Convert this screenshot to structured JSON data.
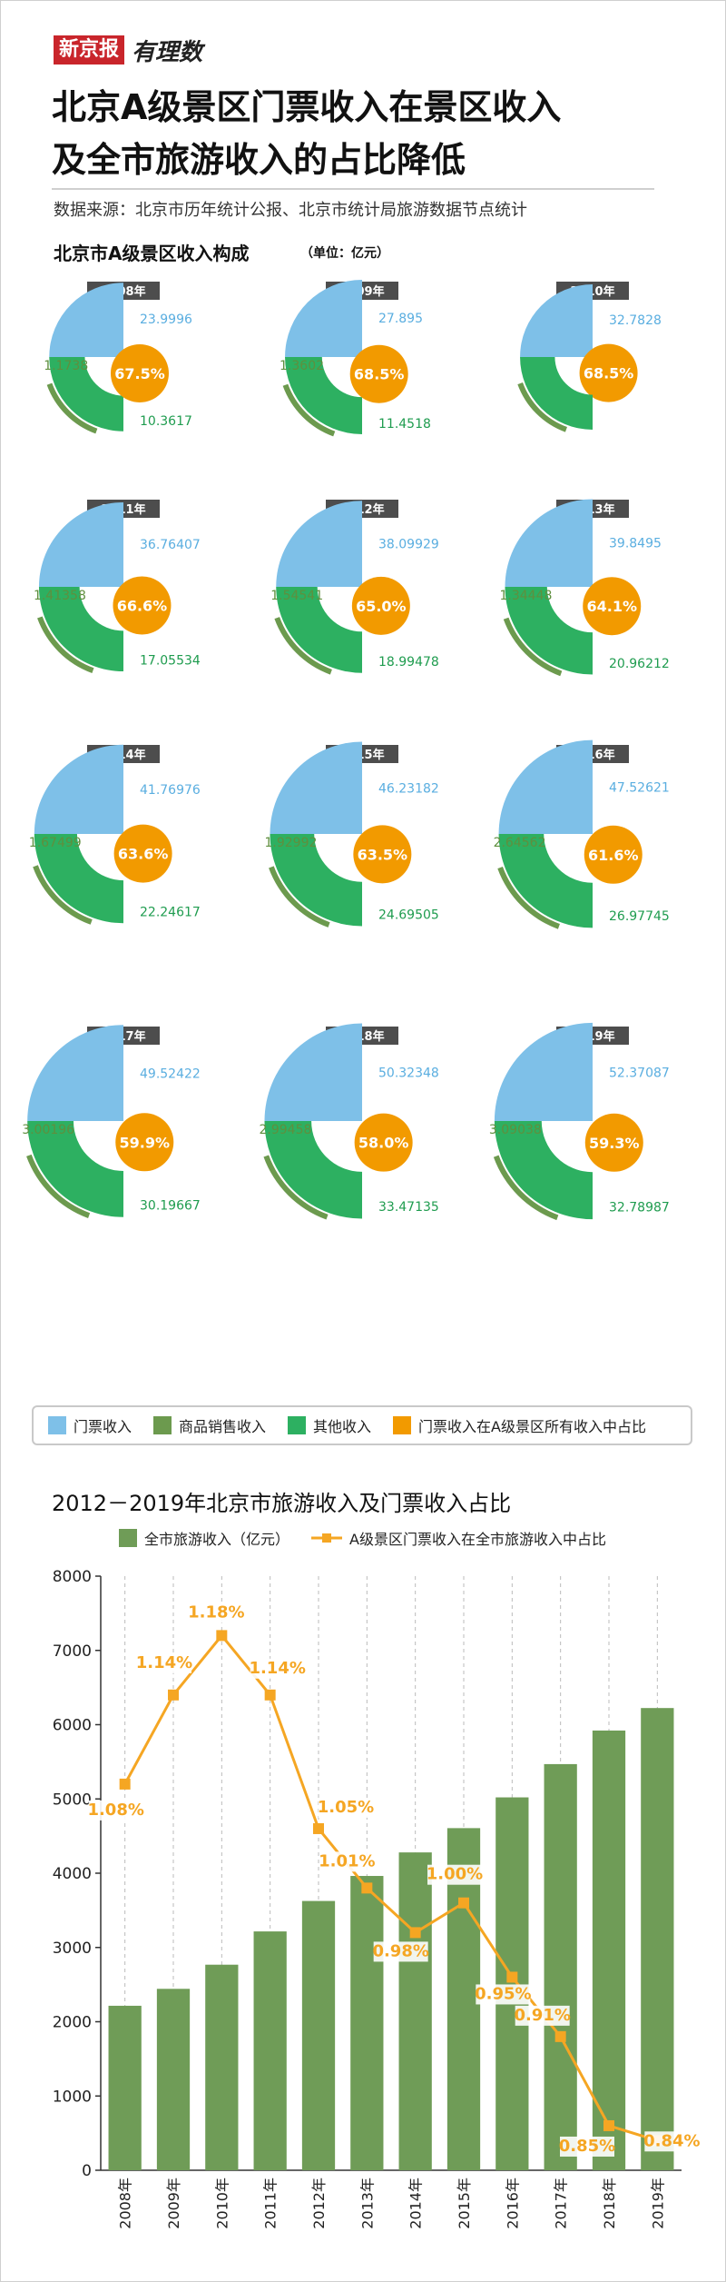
{
  "header": {
    "brand_badge": "新京报",
    "brand_script": "有理数",
    "title_line1": "北京A级景区门票收入在景区收入",
    "title_line2": "及全市旅游收入的占比降低",
    "source": "数据来源：北京市历年统计公报、北京市统计局旅游数据节点统计"
  },
  "section1": {
    "title": "北京市A级景区收入构成",
    "unit": "（单位：亿元）"
  },
  "legend1": {
    "items": [
      {
        "label": "门票收入",
        "color": "#7ec0e8"
      },
      {
        "label": "商品销售收入",
        "color": "#6c9a4e"
      },
      {
        "label": "其他收入",
        "color": "#2db061"
      },
      {
        "label": "门票收入在A级景区所有收入中占比",
        "color": "#f29a00"
      }
    ]
  },
  "section2": {
    "title": "2012－2019年北京市旅游收入及门票收入占比",
    "legend_bar": "全市旅游收入（亿元）",
    "legend_line": "A级景区门票收入在全市旅游收入中占比"
  },
  "chart_data": [
    {
      "type": "pie",
      "title": "北京市A级景区收入构成",
      "unit": "亿元",
      "series_names": [
        "门票收入",
        "商品销售收入",
        "其他收入",
        "门票收入在A级景区所有收入中占比"
      ],
      "years": [
        {
          "year": "2008年",
          "ticket": "23.9996",
          "goods": "1.1738",
          "other": "10.3617",
          "share": "67.5%"
        },
        {
          "year": "2009年",
          "ticket": "27.895",
          "goods": "1.3602",
          "other": "11.4518",
          "share": "68.5%"
        },
        {
          "year": "2010年",
          "ticket": "32.7828",
          "goods": "",
          "other": "",
          "share": "68.5%"
        },
        {
          "year": "2011年",
          "ticket": "36.76407",
          "goods": "1.41358",
          "other": "17.05534",
          "share": "66.6%"
        },
        {
          "year": "2012年",
          "ticket": "38.09929",
          "goods": "1.54541",
          "other": "18.99478",
          "share": "65.0%"
        },
        {
          "year": "2013年",
          "ticket": "39.8495",
          "goods": "1.34448",
          "other": "20.96212",
          "share": "64.1%"
        },
        {
          "year": "2014年",
          "ticket": "41.76976",
          "goods": "1.67499",
          "other": "22.24617",
          "share": "63.6%"
        },
        {
          "year": "2015年",
          "ticket": "46.23182",
          "goods": "1.92992",
          "other": "24.69505",
          "share": "63.5%"
        },
        {
          "year": "2016年",
          "ticket": "47.52621",
          "goods": "2.64562",
          "other": "26.97745",
          "share": "61.6%"
        },
        {
          "year": "2017年",
          "ticket": "49.52422",
          "goods": "3.00196",
          "other": "30.19667",
          "share": "59.9%"
        },
        {
          "year": "2018年",
          "ticket": "50.32348",
          "goods": "2.99458",
          "other": "33.47135",
          "share": "58.0%"
        },
        {
          "year": "2019年",
          "ticket": "52.37087",
          "goods": "3.09038",
          "other": "32.78987",
          "share": "59.3%"
        }
      ]
    },
    {
      "type": "bar",
      "title": "2012－2019年北京市旅游收入及门票收入占比",
      "categories": [
        "2008年",
        "2009年",
        "2010年",
        "2011年",
        "2012年",
        "2013年",
        "2014年",
        "2015年",
        "2016年",
        "2017年",
        "2018年",
        "2019年"
      ],
      "series": [
        {
          "name": "全市旅游收入（亿元）",
          "type": "bar",
          "color": "#6f9c57",
          "values": [
            2215,
            2443,
            2768,
            3216,
            3626,
            3963,
            4280,
            4607,
            5021,
            5469,
            5921,
            6224
          ]
        },
        {
          "name": "A级景区门票收入在全市旅游收入中占比",
          "type": "line",
          "color": "#f5a623",
          "values": [
            1.08,
            1.14,
            1.18,
            1.14,
            1.05,
            1.01,
            0.98,
            1.0,
            0.95,
            0.91,
            0.85,
            0.84
          ],
          "labels": [
            "1.08%",
            "1.14%",
            "1.18%",
            "1.14%",
            "1.05%",
            "1.01%",
            "0.98%",
            "1.00%",
            "0.95%",
            "0.91%",
            "0.85%",
            "0.84%"
          ]
        }
      ],
      "y_ticks": [
        "0",
        "1000",
        "2000",
        "3000",
        "4000",
        "5000",
        "6000",
        "7000",
        "8000"
      ],
      "ylim": [
        0,
        8000
      ],
      "line_range": [
        0.82,
        1.22
      ],
      "grid": "vertical dashed"
    }
  ]
}
